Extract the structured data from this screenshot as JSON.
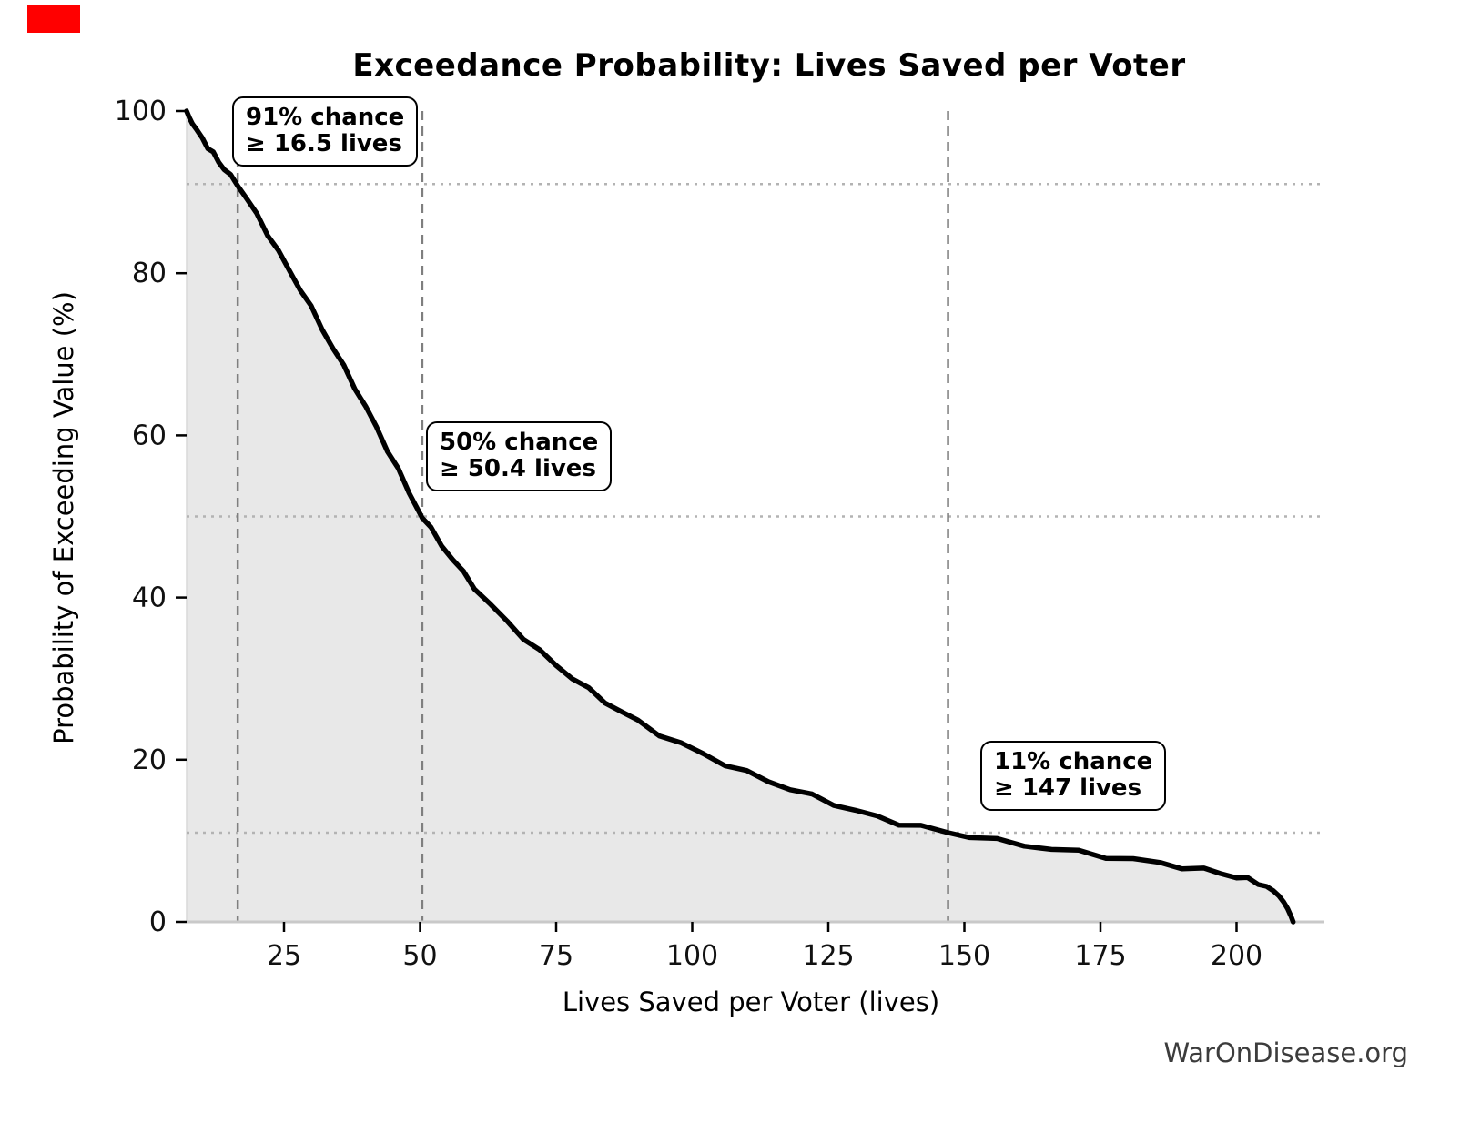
{
  "chart_data": {
    "type": "area",
    "title": "Exceedance Probability: Lives Saved per Voter",
    "xlabel": "Lives Saved per Voter (lives)",
    "ylabel": "Probability of Exceeding Value (%)",
    "x_ticks": [
      25,
      50,
      75,
      100,
      125,
      150,
      175,
      200
    ],
    "y_ticks": [
      0,
      20,
      40,
      60,
      80,
      100
    ],
    "xlim": [
      7.1,
      216
    ],
    "ylim": [
      0,
      100
    ],
    "legend": "none",
    "grid": "off (reference guide lines only)",
    "series": [
      {
        "name": "exceedance-curve",
        "points": [
          [
            7.1,
            100
          ],
          [
            7.6,
            99.2
          ],
          [
            8.2,
            98.4
          ],
          [
            9,
            97.5
          ],
          [
            10,
            96.6
          ],
          [
            11,
            95.6
          ],
          [
            12,
            94.7
          ],
          [
            13,
            93.8
          ],
          [
            14,
            92.9
          ],
          [
            15.2,
            91.9
          ],
          [
            16.5,
            91
          ],
          [
            18,
            89.3
          ],
          [
            20,
            87.2
          ],
          [
            22,
            84.9
          ],
          [
            24,
            82.6
          ],
          [
            26,
            80.3
          ],
          [
            28,
            78.1
          ],
          [
            30,
            75.7
          ],
          [
            32,
            73.2
          ],
          [
            34,
            70.8
          ],
          [
            36,
            68.4
          ],
          [
            38,
            66
          ],
          [
            40,
            63.5
          ],
          [
            42,
            60.9
          ],
          [
            44,
            58.3
          ],
          [
            46,
            55.7
          ],
          [
            48,
            52.9
          ],
          [
            50.4,
            50
          ],
          [
            52,
            48.4
          ],
          [
            54,
            46.5
          ],
          [
            56,
            44.7
          ],
          [
            58,
            43
          ],
          [
            60,
            41.3
          ],
          [
            63,
            39
          ],
          [
            66,
            37
          ],
          [
            69,
            35.1
          ],
          [
            72,
            33.3
          ],
          [
            75,
            31.7
          ],
          [
            78,
            30.1
          ],
          [
            81,
            28.6
          ],
          [
            84,
            27.2
          ],
          [
            87,
            25.9
          ],
          [
            90,
            24.7
          ],
          [
            94,
            23.2
          ],
          [
            98,
            21.9
          ],
          [
            102,
            20.7
          ],
          [
            106,
            19.5
          ],
          [
            110,
            18.4
          ],
          [
            114,
            17.4
          ],
          [
            118,
            16.4
          ],
          [
            122,
            15.5
          ],
          [
            126,
            14.6
          ],
          [
            130,
            13.7
          ],
          [
            134,
            12.9
          ],
          [
            138,
            12.2
          ],
          [
            142,
            11.7
          ],
          [
            147,
            11
          ],
          [
            151,
            10.6
          ],
          [
            156,
            10
          ],
          [
            161,
            9.5
          ],
          [
            166,
            9
          ],
          [
            171,
            8.6
          ],
          [
            176,
            8.1
          ],
          [
            181,
            7.7
          ],
          [
            186,
            7.2
          ],
          [
            190,
            6.8
          ],
          [
            194,
            6.4
          ],
          [
            197,
            6
          ],
          [
            200,
            5.6
          ],
          [
            202,
            5.2
          ],
          [
            204,
            4.8
          ],
          [
            205.5,
            4.4
          ],
          [
            206.8,
            3.8
          ],
          [
            207.8,
            3.2
          ],
          [
            208.7,
            2.4
          ],
          [
            209.4,
            1.6
          ],
          [
            210,
            0.7
          ],
          [
            210.4,
            0
          ]
        ]
      }
    ],
    "reference_lines": {
      "vertical_dashed_x": [
        16.5,
        50.4,
        147
      ],
      "horizontal_dotted_probability": [
        91,
        50,
        11
      ]
    },
    "annotations": [
      {
        "line1": "91% chance",
        "line2": "≥ 16.5 lives",
        "probability_percent": 91,
        "value_lives": 16.5
      },
      {
        "line1": "50% chance",
        "line2": "≥ 50.4 lives",
        "probability_percent": 50,
        "value_lives": 50.4
      },
      {
        "line1": "11% chance",
        "line2": "≥ 147 lives",
        "probability_percent": 11,
        "value_lives": 147
      }
    ],
    "watermark": "WarOnDisease.org",
    "colors": {
      "curve": "#000000",
      "area_fill": "#e8e8e8",
      "dashed_guide": "#7f7f7f",
      "dotted_guide": "#b3b3b3",
      "axis_baseline": "#c9c9c9",
      "left_fill_edge": "#d9d9d9",
      "tick": "#000000",
      "tick_label": "#111111",
      "watermark": "#3c3c3c",
      "corner_marker_red": "#ff0000"
    }
  }
}
